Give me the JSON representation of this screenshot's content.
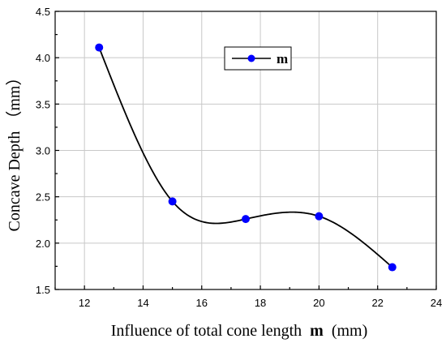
{
  "chart_data": {
    "type": "line",
    "x": [
      12.5,
      15,
      17.5,
      20,
      22.5
    ],
    "series": [
      {
        "name": "m",
        "values": [
          4.11,
          2.45,
          2.26,
          2.29,
          1.74
        ],
        "color": "#0000ff",
        "line_color": "#000000"
      }
    ],
    "xlabel": "Influence of total cone length",
    "xlabel_bold": "m",
    "xlabel_unit": "(mm)",
    "ylabel": "Concave Depth （mm）",
    "xlim": [
      11,
      24
    ],
    "ylim": [
      1.5,
      4.5
    ],
    "xticks": [
      "12",
      "14",
      "16",
      "18",
      "20",
      "22",
      "24"
    ],
    "yticks": [
      "1.5",
      "2.0",
      "2.5",
      "3.0",
      "3.5",
      "4.0",
      "4.5"
    ],
    "grid": true,
    "legend_position": "top-center",
    "smooth": true
  }
}
